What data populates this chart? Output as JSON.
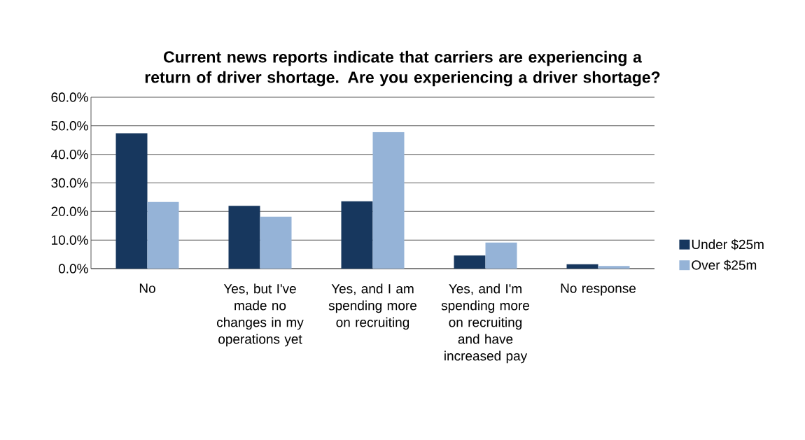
{
  "chart_data": {
    "type": "bar",
    "title": "Current news reports indicate that carriers are experiencing a return of driver shortage. Are you experiencing a driver shortage?",
    "categories": [
      "No",
      "Yes, but I've made no changes in my operations yet",
      "Yes, and I am spending more on recruiting",
      "Yes, and I'm spending more on recruiting and have increased pay",
      "No response"
    ],
    "series": [
      {
        "name": "Under $25m",
        "color": "#17375e",
        "values": [
          47.4,
          22.0,
          23.6,
          4.6,
          1.5
        ]
      },
      {
        "name": "Over $25m",
        "color": "#95b3d7",
        "values": [
          23.3,
          18.2,
          47.8,
          9.1,
          0.9
        ]
      }
    ],
    "ylim": [
      0,
      60
    ],
    "yticks": [
      {
        "value": 0,
        "label": "0.0%"
      },
      {
        "value": 10,
        "label": "10.0%"
      },
      {
        "value": 20,
        "label": "20.0%"
      },
      {
        "value": 30,
        "label": "30.0%"
      },
      {
        "value": 40,
        "label": "40.0%"
      },
      {
        "value": 50,
        "label": "50.0%"
      },
      {
        "value": 60,
        "label": "60.0%"
      }
    ],
    "grid": "y",
    "legend": "right"
  }
}
